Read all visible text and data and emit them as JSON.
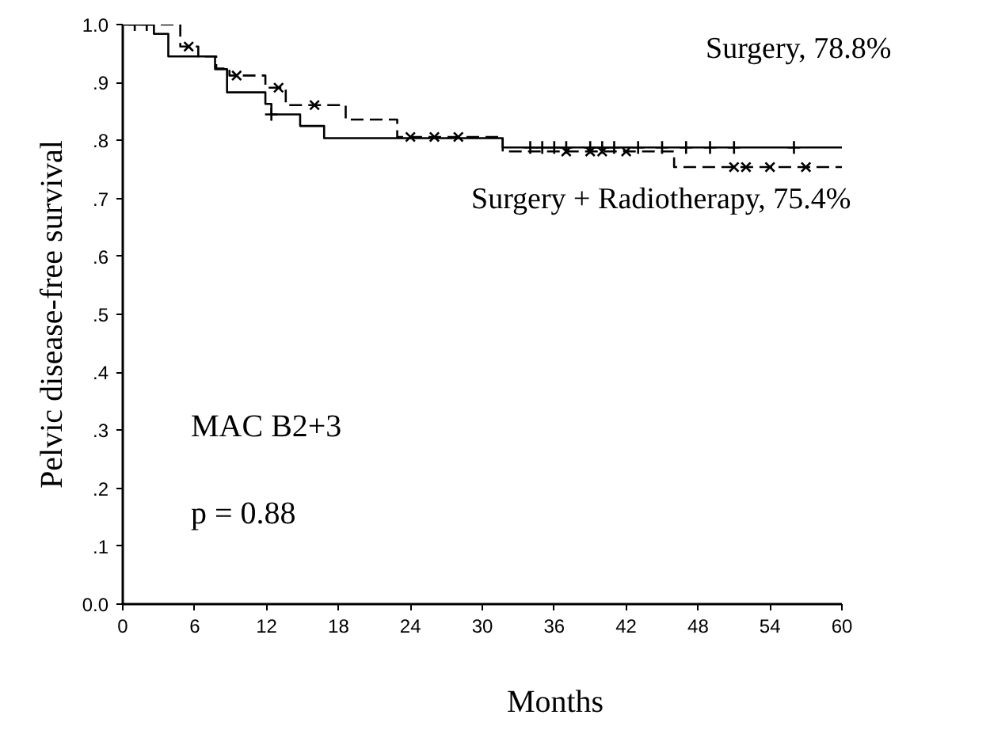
{
  "chart_data": {
    "type": "step",
    "xlabel": "Months",
    "ylabel": "Pelvic disease-free survival",
    "xlim": [
      0,
      60
    ],
    "ylim": [
      0,
      1.0
    ],
    "xticks": [
      0,
      6,
      12,
      18,
      24,
      30,
      36,
      42,
      48,
      54,
      60
    ],
    "yticks": [
      {
        "value": 0,
        "label": "0.0"
      },
      {
        "value": 0.1,
        "label": ".1"
      },
      {
        "value": 0.2,
        "label": ".2"
      },
      {
        "value": 0.3,
        "label": ".3"
      },
      {
        "value": 0.4,
        "label": ".4"
      },
      {
        "value": 0.5,
        "label": ".5"
      },
      {
        "value": 0.6,
        "label": ".6"
      },
      {
        "value": 0.7,
        "label": ".7"
      },
      {
        "value": 0.8,
        "label": ".8"
      },
      {
        "value": 0.9,
        "label": ".9"
      },
      {
        "value": 1.0,
        "label": "1.0"
      }
    ],
    "grid": false,
    "series": [
      {
        "line_style": "solid",
        "color": "#000000",
        "x": [
          0,
          2.6,
          3.8,
          7.7,
          8.7,
          11.9,
          12.4,
          14.8,
          16.8,
          31.7,
          60
        ],
        "values": [
          1.0,
          0.984,
          0.945,
          0.923,
          0.883,
          0.863,
          0.845,
          0.825,
          0.804,
          0.788,
          0.788
        ]
      },
      {
        "line_style": "dashed",
        "color": "#000000",
        "x": [
          0,
          4.8,
          6.3,
          7.8,
          8.9,
          11.9,
          13.6,
          18.6,
          22.9,
          31.7,
          46,
          60
        ],
        "values": [
          1.0,
          0.962,
          0.945,
          0.924,
          0.912,
          0.891,
          0.861,
          0.836,
          0.806,
          0.781,
          0.754,
          0.754
        ]
      },
      {
        "type": "scatter",
        "marker": "cross",
        "color": "#000000",
        "x": [
          1,
          2,
          12.4,
          34,
          35,
          36,
          37,
          39,
          40,
          41,
          43,
          45,
          47,
          49,
          51,
          56
        ],
        "values": [
          1.0,
          1.0,
          0.845,
          0.788,
          0.788,
          0.788,
          0.788,
          0.788,
          0.788,
          0.788,
          0.788,
          0.788,
          0.788,
          0.788,
          0.788,
          0.788
        ]
      },
      {
        "type": "scatter",
        "marker": "cross",
        "color": "#000000",
        "x": [
          5.5,
          9.5,
          13,
          16,
          24,
          26,
          28,
          37,
          39,
          40,
          42,
          51,
          52,
          54,
          57
        ],
        "values": [
          0.962,
          0.912,
          0.891,
          0.861,
          0.806,
          0.806,
          0.806,
          0.781,
          0.781,
          0.781,
          0.781,
          0.754,
          0.754,
          0.754,
          0.754
        ]
      }
    ],
    "annotations": [
      "Surgery,  78.8%",
      "Surgery + Radiotherapy,  75.4%",
      "MAC  B2+3",
      "p = 0.88"
    ]
  }
}
